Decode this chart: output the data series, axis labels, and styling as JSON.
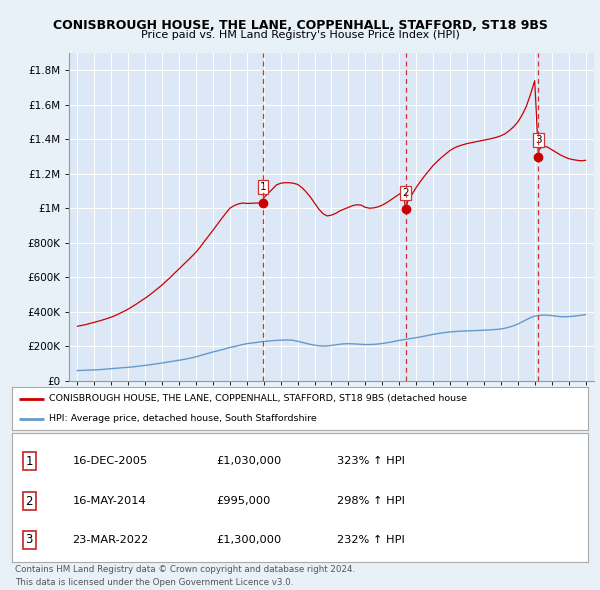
{
  "title": "CONISBROUGH HOUSE, THE LANE, COPPENHALL, STAFFORD, ST18 9BS",
  "subtitle": "Price paid vs. HM Land Registry's House Price Index (HPI)",
  "bg_color": "#e8f0f8",
  "plot_bg_color": "#dce8f5",
  "grid_color": "#ffffff",
  "sales": [
    {
      "label": "1",
      "date_num": 2005.96,
      "price": 1030000,
      "date_str": "16-DEC-2005",
      "pct": "323%",
      "dir": "↑"
    },
    {
      "label": "2",
      "date_num": 2014.37,
      "price": 995000,
      "date_str": "16-MAY-2014",
      "pct": "298%",
      "dir": "↑"
    },
    {
      "label": "3",
      "date_num": 2022.22,
      "price": 1300000,
      "date_str": "23-MAR-2022",
      "pct": "232%",
      "dir": "↑"
    }
  ],
  "hpi_years": [
    1995,
    1995.25,
    1995.5,
    1995.75,
    1996,
    1996.25,
    1996.5,
    1996.75,
    1997,
    1997.25,
    1997.5,
    1997.75,
    1998,
    1998.25,
    1998.5,
    1998.75,
    1999,
    1999.25,
    1999.5,
    1999.75,
    2000,
    2000.25,
    2000.5,
    2000.75,
    2001,
    2001.25,
    2001.5,
    2001.75,
    2002,
    2002.25,
    2002.5,
    2002.75,
    2003,
    2003.25,
    2003.5,
    2003.75,
    2004,
    2004.25,
    2004.5,
    2004.75,
    2005,
    2005.25,
    2005.5,
    2005.75,
    2006,
    2006.25,
    2006.5,
    2006.75,
    2007,
    2007.25,
    2007.5,
    2007.75,
    2008,
    2008.25,
    2008.5,
    2008.75,
    2009,
    2009.25,
    2009.5,
    2009.75,
    2010,
    2010.25,
    2010.5,
    2010.75,
    2011,
    2011.25,
    2011.5,
    2011.75,
    2012,
    2012.25,
    2012.5,
    2012.75,
    2013,
    2013.25,
    2013.5,
    2013.75,
    2014,
    2014.25,
    2014.5,
    2014.75,
    2015,
    2015.25,
    2015.5,
    2015.75,
    2016,
    2016.25,
    2016.5,
    2016.75,
    2017,
    2017.25,
    2017.5,
    2017.75,
    2018,
    2018.25,
    2018.5,
    2018.75,
    2019,
    2019.25,
    2019.5,
    2019.75,
    2020,
    2020.25,
    2020.5,
    2020.75,
    2021,
    2021.25,
    2021.5,
    2021.75,
    2022,
    2022.25,
    2022.5,
    2022.75,
    2023,
    2023.25,
    2023.5,
    2023.75,
    2024,
    2024.25,
    2024.5,
    2024.75,
    2025
  ],
  "hpi_values": [
    58000,
    59000,
    60000,
    61000,
    62000,
    63000,
    65000,
    67000,
    69000,
    71000,
    73000,
    75000,
    77000,
    79000,
    82000,
    85000,
    88000,
    91000,
    95000,
    98000,
    102000,
    106000,
    110000,
    114000,
    118000,
    122000,
    127000,
    132000,
    138000,
    145000,
    152000,
    159000,
    166000,
    172000,
    178000,
    185000,
    192000,
    197000,
    203000,
    209000,
    214000,
    217000,
    220000,
    224000,
    227000,
    229000,
    231000,
    233000,
    234000,
    235000,
    235500,
    233000,
    228000,
    222000,
    216000,
    210000,
    205000,
    202000,
    200000,
    201000,
    204000,
    207000,
    211000,
    213000,
    214000,
    213000,
    212000,
    210000,
    209000,
    209000,
    210000,
    212000,
    215000,
    219000,
    223000,
    228000,
    233000,
    237000,
    241000,
    245000,
    249000,
    253000,
    258000,
    263000,
    268000,
    272000,
    276000,
    279000,
    282000,
    284000,
    286000,
    287000,
    288000,
    289000,
    290000,
    291000,
    292000,
    293000,
    295000,
    297000,
    299000,
    304000,
    310000,
    318000,
    328000,
    340000,
    353000,
    365000,
    374000,
    378000,
    380000,
    379000,
    377000,
    374000,
    371000,
    370000,
    371000,
    373000,
    376000,
    379000,
    383000
  ],
  "red_years": [
    1995,
    1995.25,
    1995.5,
    1995.75,
    1996,
    1996.25,
    1996.5,
    1996.75,
    1997,
    1997.25,
    1997.5,
    1997.75,
    1998,
    1998.25,
    1998.5,
    1998.75,
    1999,
    1999.25,
    1999.5,
    1999.75,
    2000,
    2000.25,
    2000.5,
    2000.75,
    2001,
    2001.25,
    2001.5,
    2001.75,
    2002,
    2002.25,
    2002.5,
    2002.75,
    2003,
    2003.25,
    2003.5,
    2003.75,
    2004,
    2004.25,
    2004.5,
    2004.75,
    2005,
    2005.25,
    2005.5,
    2005.75,
    2005.96,
    2006,
    2006.25,
    2006.5,
    2006.75,
    2007,
    2007.25,
    2007.5,
    2007.75,
    2008,
    2008.25,
    2008.5,
    2008.75,
    2009,
    2009.25,
    2009.5,
    2009.75,
    2010,
    2010.25,
    2010.5,
    2010.75,
    2011,
    2011.25,
    2011.5,
    2011.75,
    2012,
    2012.25,
    2012.5,
    2012.75,
    2013,
    2013.25,
    2013.5,
    2013.75,
    2014,
    2014.25,
    2014.37,
    2014.5,
    2014.75,
    2015,
    2015.25,
    2015.5,
    2015.75,
    2016,
    2016.25,
    2016.5,
    2016.75,
    2017,
    2017.25,
    2017.5,
    2017.75,
    2018,
    2018.25,
    2018.5,
    2018.75,
    2019,
    2019.25,
    2019.5,
    2019.75,
    2020,
    2020.25,
    2020.5,
    2020.75,
    2021,
    2021.25,
    2021.5,
    2021.75,
    2022,
    2022.22,
    2022.25,
    2022.5,
    2022.75,
    2023,
    2023.25,
    2023.5,
    2023.75,
    2024,
    2024.25,
    2024.5,
    2024.75,
    2025
  ],
  "red_values": [
    315000,
    320000,
    325000,
    332000,
    338000,
    345000,
    352000,
    360000,
    368000,
    378000,
    390000,
    402000,
    415000,
    430000,
    445000,
    462000,
    478000,
    496000,
    515000,
    535000,
    555000,
    578000,
    600000,
    625000,
    648000,
    672000,
    696000,
    720000,
    745000,
    775000,
    808000,
    840000,
    872000,
    905000,
    938000,
    970000,
    1000000,
    1015000,
    1025000,
    1030000,
    1028000,
    1028000,
    1030000,
    1030000,
    1030000,
    1060000,
    1085000,
    1110000,
    1135000,
    1145000,
    1148000,
    1148000,
    1145000,
    1138000,
    1120000,
    1095000,
    1065000,
    1030000,
    995000,
    968000,
    955000,
    960000,
    970000,
    985000,
    995000,
    1005000,
    1015000,
    1020000,
    1018000,
    1005000,
    1000000,
    1002000,
    1008000,
    1018000,
    1032000,
    1048000,
    1065000,
    1082000,
    1095000,
    995000,
    1040000,
    1080000,
    1120000,
    1155000,
    1188000,
    1218000,
    1248000,
    1272000,
    1295000,
    1315000,
    1335000,
    1350000,
    1360000,
    1368000,
    1375000,
    1380000,
    1385000,
    1390000,
    1395000,
    1400000,
    1405000,
    1412000,
    1420000,
    1432000,
    1450000,
    1472000,
    1500000,
    1540000,
    1590000,
    1660000,
    1740000,
    1300000,
    1340000,
    1360000,
    1355000,
    1340000,
    1325000,
    1310000,
    1298000,
    1288000,
    1282000,
    1278000,
    1275000,
    1278000
  ],
  "yticks": [
    0,
    200000,
    400000,
    600000,
    800000,
    1000000,
    1200000,
    1400000,
    1600000,
    1800000
  ],
  "ytick_labels": [
    "£0",
    "£200K",
    "£400K",
    "£600K",
    "£800K",
    "£1M",
    "£1.2M",
    "£1.4M",
    "£1.6M",
    "£1.8M"
  ],
  "xtick_years": [
    1995,
    1996,
    1997,
    1998,
    1999,
    2000,
    2001,
    2002,
    2003,
    2004,
    2005,
    2006,
    2007,
    2008,
    2009,
    2010,
    2011,
    2012,
    2013,
    2014,
    2015,
    2016,
    2017,
    2018,
    2019,
    2020,
    2021,
    2022,
    2023,
    2024,
    2025
  ],
  "ylim": [
    0,
    1900000
  ],
  "xlim": [
    1994.5,
    2025.5
  ],
  "red_color": "#cc0000",
  "blue_color": "#6699cc",
  "vline_color": "#cc3333",
  "footer_text": "Contains HM Land Registry data © Crown copyright and database right 2024.\nThis data is licensed under the Open Government Licence v3.0.",
  "legend_label_red": "CONISBROUGH HOUSE, THE LANE, COPPENHALL, STAFFORD, ST18 9BS (detached house",
  "legend_label_blue": "HPI: Average price, detached house, South Staffordshire"
}
